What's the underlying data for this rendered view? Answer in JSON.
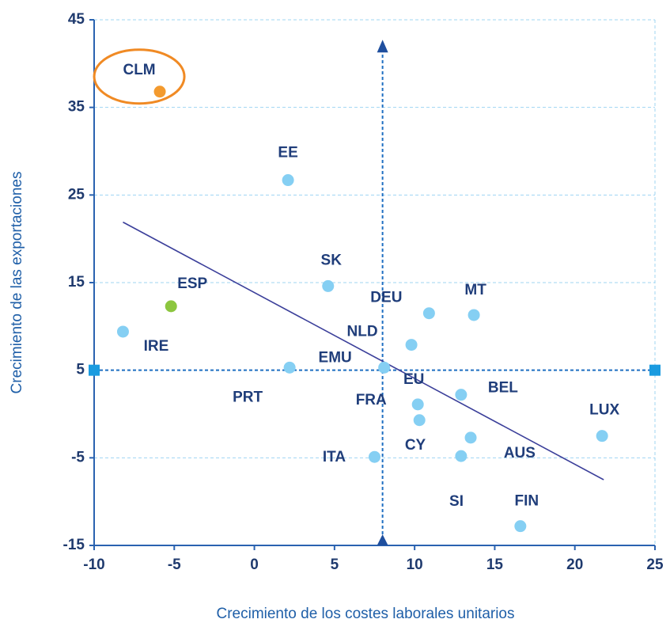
{
  "chart_data": {
    "type": "scatter",
    "xlabel": "Crecimiento de los costes laborales unitarios",
    "ylabel": "Crecimiento de las exportaciones",
    "xlim": [
      -10,
      25
    ],
    "xticks": [
      -10,
      -5,
      0,
      5,
      10,
      15,
      20,
      25
    ],
    "ylim": [
      -15,
      45
    ],
    "yticks": [
      -15,
      -5,
      5,
      15,
      25,
      35,
      45
    ],
    "grid": true,
    "points": {
      "labels": [
        "CLM",
        "EE",
        "SK",
        "ESP",
        "IRE",
        "DEU",
        "MT",
        "NLD",
        "PRT",
        "EMU",
        "EU",
        "BEL",
        "FRA",
        "CY",
        "AUS",
        "FIN",
        "ITA",
        "LUX"
      ],
      "x": [
        -5.9,
        2.1,
        4.6,
        -5.2,
        -8.2,
        10.9,
        13.7,
        9.8,
        2.2,
        8.1,
        10.2,
        12.9,
        10.3,
        13.5,
        12.9,
        16.6,
        7.5,
        21.7
      ],
      "y": [
        36.8,
        26.7,
        14.6,
        12.3,
        9.4,
        11.5,
        11.3,
        7.9,
        5.3,
        5.3,
        1.1,
        2.2,
        -0.7,
        -2.7,
        -4.8,
        -12.8,
        -4.9,
        -2.5
      ],
      "colors": [
        "#f39a2e",
        "#85cff3",
        "#85cff3",
        "#8cc63f",
        "#85cff3",
        "#85cff3",
        "#85cff3",
        "#85cff3",
        "#85cff3",
        "#85cff3",
        "#85cff3",
        "#85cff3",
        "#85cff3",
        "#85cff3",
        "#85cff3",
        "#85cff3",
        "#85cff3",
        "#85cff3"
      ]
    },
    "annotations": [
      "SI"
    ],
    "trend_line": {
      "x": [
        -8.2,
        21.8
      ],
      "y": [
        21.9,
        -7.5
      ],
      "color": "#3b3f9a"
    },
    "reference_lines": {
      "x": 8,
      "y": 5,
      "x_top": 42,
      "color": "#1f6fc2"
    },
    "highlight_color": "#f08a24"
  }
}
